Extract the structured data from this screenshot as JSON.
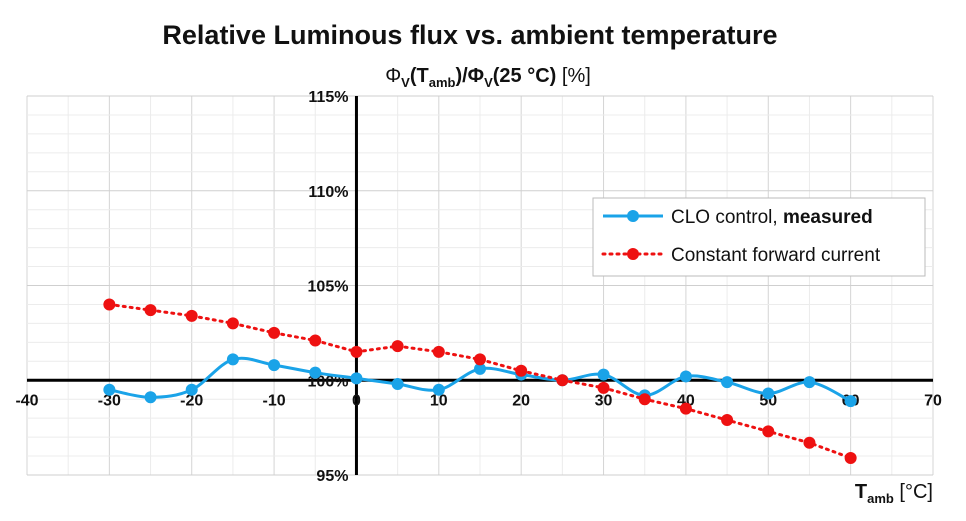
{
  "chart_data": {
    "type": "line",
    "title": "Relative Luminous flux vs. ambient temperature",
    "ylabel": {
      "prefix": "Φ",
      "sub1": "V",
      "mid": "(T",
      "sub2": "amb",
      "mid2": ")/Φ",
      "sub3": "V",
      "end": "(25 °C)",
      "unit": " [%]"
    },
    "xlabel": {
      "main": "T",
      "sub": "amb",
      "unit": " [°C]"
    },
    "xlim": [
      -40,
      70
    ],
    "ylim": [
      95,
      115
    ],
    "xticks": [
      -40,
      -30,
      -20,
      -10,
      0,
      10,
      20,
      30,
      40,
      50,
      60,
      70
    ],
    "xtick_labels": [
      "-40",
      "-30",
      "-20",
      "-10",
      "0",
      "10",
      "20",
      "30",
      "40",
      "50",
      "60",
      "70"
    ],
    "yticks": [
      95,
      100,
      105,
      110,
      115
    ],
    "ytick_labels": [
      "95%",
      "100%",
      "105%",
      "110%",
      "115%"
    ],
    "grid": true,
    "legend_position": "right",
    "series": [
      {
        "name": "CLO control, measured",
        "name_plain": "CLO control, ",
        "name_bold": "measured",
        "color": "#1aa3e8",
        "line_style": "solid-smooth",
        "x": [
          -30,
          -25,
          -20,
          -15,
          -10,
          -5,
          0,
          5,
          10,
          15,
          20,
          25,
          30,
          35,
          40,
          45,
          50,
          55,
          60
        ],
        "y": [
          99.5,
          99.1,
          99.5,
          101.1,
          100.8,
          100.4,
          100.1,
          99.8,
          99.5,
          100.6,
          100.3,
          100.0,
          100.3,
          99.2,
          100.2,
          99.9,
          99.3,
          99.9,
          98.9
        ]
      },
      {
        "name": "Constant forward current",
        "color": "#ee1111",
        "line_style": "dotted",
        "x": [
          -30,
          -25,
          -20,
          -15,
          -10,
          -5,
          0,
          5,
          10,
          15,
          20,
          25,
          30,
          35,
          40,
          45,
          50,
          55,
          60
        ],
        "y": [
          104.0,
          103.7,
          103.4,
          103.0,
          102.5,
          102.1,
          101.5,
          101.8,
          101.5,
          101.1,
          100.5,
          100.0,
          99.6,
          99.0,
          98.5,
          97.9,
          97.3,
          96.7,
          95.9
        ]
      }
    ]
  }
}
